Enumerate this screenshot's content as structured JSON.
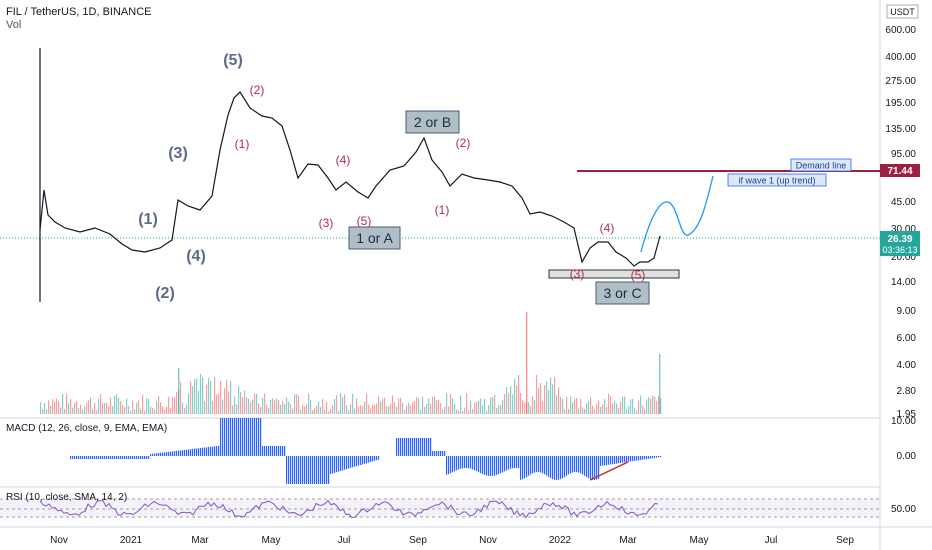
{
  "header": {
    "symbol": "FIL / TetherUS, 1D, BINANCE",
    "vol_label": "Vol"
  },
  "currency": "USDT",
  "price_axis": [
    "600.00",
    "400.00",
    "275.00",
    "195.00",
    "135.00",
    "95.00",
    "45.00",
    "30.00",
    "20.00",
    "14.00",
    "9.00",
    "6.00",
    "4.00",
    "2.80",
    "1.95"
  ],
  "macd_axis": [
    "10.00",
    "0.00"
  ],
  "rsi_axis": [
    "50.00"
  ],
  "time_axis": [
    "Nov",
    "2021",
    "Mar",
    "May",
    "Jul",
    "Sep",
    "Nov",
    "2022",
    "Mar",
    "May",
    "Jul",
    "Sep"
  ],
  "price_tags": {
    "demand_value": "71.44",
    "current_price": "26.39",
    "countdown": "03:36:13"
  },
  "macd_label": "MACD (12, 26, close, 9, EMA, EMA)",
  "rsi_label": "RSI (10, close, SMA, 14, 2)",
  "annotations": {
    "demand_line": "Demand line",
    "wave_note": "if  wave 1 (up trend)",
    "box_1a": "1 or A",
    "box_2b": "2 or B",
    "box_3c": "3 or C"
  },
  "major_waves": [
    "(5)",
    "(3)",
    "(1)",
    "(4)",
    "(2)"
  ],
  "minor_waves": [
    "(2)",
    "(1)",
    "(4)",
    "(3)",
    "(5)",
    "(2)",
    "(1)",
    "(4)",
    "(3)",
    "(5)"
  ],
  "colors": {
    "up": "#26a69a",
    "down": "#ef5350",
    "candle": "#131722",
    "major_wave": "#5d6a8c",
    "minor_wave": "#b22d4a",
    "demand": "#9c1f44",
    "macd": "#2962ff",
    "rsi": "#7e57c2",
    "projection": "#2196f3"
  }
}
